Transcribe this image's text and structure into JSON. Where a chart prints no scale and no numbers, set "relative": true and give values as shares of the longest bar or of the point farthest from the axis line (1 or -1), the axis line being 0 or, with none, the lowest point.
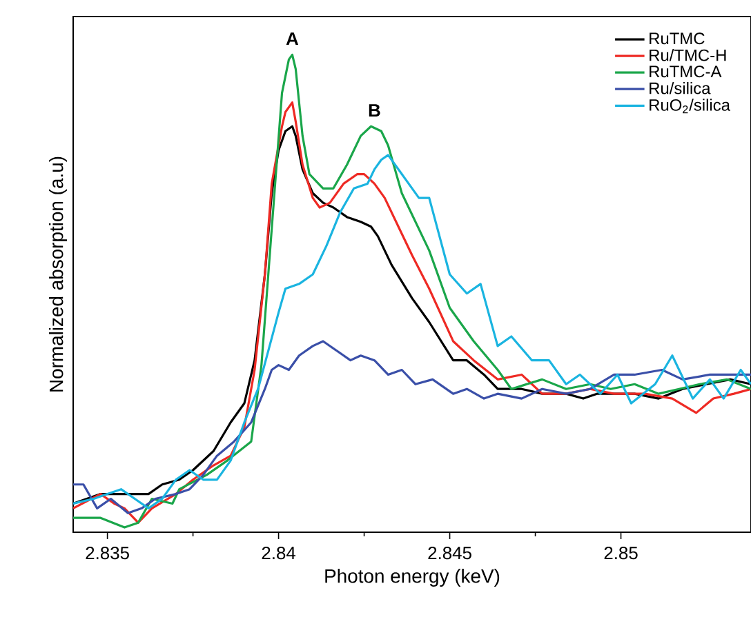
{
  "chart_data": {
    "type": "line",
    "relative": true,
    "xlabel": "Photon energy (keV)",
    "ylabel": "Normalized absorption (a.u)",
    "xlim": [
      2.834,
      2.8538
    ],
    "xticks": [
      2.835,
      2.84,
      2.845,
      2.85
    ],
    "legend": "top right",
    "grid": false,
    "marker": "none",
    "line_style": "solid",
    "annotations": [
      {
        "text": "A",
        "x": 2.8404,
        "y": 1.0
      },
      {
        "text": "B",
        "x": 2.8428,
        "y": 0.85
      }
    ],
    "series": [
      {
        "name": "RuTMC",
        "color": "#000000",
        "x": [
          2.834,
          2.8348,
          2.8356,
          2.8362,
          2.8366,
          2.8371,
          2.8375,
          2.8381,
          2.8386,
          2.839,
          2.8393,
          2.8396,
          2.8398,
          2.84,
          2.8402,
          2.8404,
          2.8405,
          2.8407,
          2.841,
          2.8413,
          2.8416,
          2.842,
          2.8424,
          2.8427,
          2.8429,
          2.8433,
          2.8439,
          2.8444,
          2.8451,
          2.8455,
          2.846,
          2.8464,
          2.8471,
          2.8477,
          2.8484,
          2.8489,
          2.8493,
          2.8504,
          2.8511,
          2.8518,
          2.8525,
          2.8532,
          2.8538
        ],
        "values": [
          0.06,
          0.08,
          0.08,
          0.08,
          0.1,
          0.11,
          0.13,
          0.17,
          0.23,
          0.27,
          0.36,
          0.54,
          0.71,
          0.8,
          0.84,
          0.85,
          0.83,
          0.76,
          0.71,
          0.69,
          0.68,
          0.66,
          0.65,
          0.64,
          0.62,
          0.56,
          0.49,
          0.44,
          0.36,
          0.36,
          0.33,
          0.3,
          0.3,
          0.29,
          0.29,
          0.28,
          0.29,
          0.29,
          0.28,
          0.3,
          0.31,
          0.32,
          0.31
        ]
      },
      {
        "name": "Ru/TMC-H",
        "color": "#ee2a24",
        "x": [
          2.834,
          2.8348,
          2.8352,
          2.8355,
          2.8359,
          2.8363,
          2.837,
          2.8375,
          2.8381,
          2.8386,
          2.839,
          2.8393,
          2.8396,
          2.8398,
          2.8401,
          2.8402,
          2.8404,
          2.8405,
          2.8407,
          2.841,
          2.8412,
          2.8415,
          2.8419,
          2.8423,
          2.8425,
          2.8428,
          2.8431,
          2.8435,
          2.8439,
          2.8444,
          2.8451,
          2.8457,
          2.8464,
          2.8471,
          2.8477,
          2.8484,
          2.8491,
          2.8498,
          2.8507,
          2.8515,
          2.8522,
          2.8527,
          2.8533,
          2.8538
        ],
        "values": [
          0.05,
          0.08,
          0.06,
          0.05,
          0.02,
          0.05,
          0.08,
          0.11,
          0.14,
          0.16,
          0.22,
          0.34,
          0.54,
          0.73,
          0.85,
          0.88,
          0.9,
          0.86,
          0.77,
          0.7,
          0.68,
          0.69,
          0.73,
          0.75,
          0.75,
          0.73,
          0.7,
          0.64,
          0.58,
          0.51,
          0.4,
          0.36,
          0.32,
          0.33,
          0.29,
          0.29,
          0.3,
          0.29,
          0.29,
          0.28,
          0.25,
          0.28,
          0.29,
          0.3
        ]
      },
      {
        "name": "RuTMC-A",
        "color": "#1aa64a",
        "x": [
          2.834,
          2.8348,
          2.8355,
          2.8359,
          2.8363,
          2.8369,
          2.8371,
          2.8379,
          2.8385,
          2.8392,
          2.8395,
          2.8397,
          2.8399,
          2.8401,
          2.8403,
          2.8404,
          2.8405,
          2.8407,
          2.8409,
          2.8413,
          2.8416,
          2.842,
          2.8424,
          2.8427,
          2.843,
          2.8432,
          2.8436,
          2.8444,
          2.845,
          2.8457,
          2.8464,
          2.8468,
          2.8477,
          2.8484,
          2.8491,
          2.8497,
          2.8504,
          2.8511,
          2.8517,
          2.8523,
          2.8531,
          2.8538
        ],
        "values": [
          0.03,
          0.03,
          0.01,
          0.02,
          0.07,
          0.06,
          0.09,
          0.12,
          0.15,
          0.19,
          0.35,
          0.54,
          0.73,
          0.92,
          0.99,
          1.0,
          0.97,
          0.83,
          0.75,
          0.72,
          0.72,
          0.77,
          0.83,
          0.85,
          0.84,
          0.81,
          0.71,
          0.59,
          0.47,
          0.4,
          0.34,
          0.3,
          0.32,
          0.3,
          0.31,
          0.3,
          0.31,
          0.29,
          0.3,
          0.31,
          0.32,
          0.3
        ]
      },
      {
        "name": "Ru/silica",
        "color": "#3a4fa8",
        "x": [
          2.834,
          2.8343,
          2.8347,
          2.8351,
          2.8356,
          2.836,
          2.8364,
          2.837,
          2.8374,
          2.8378,
          2.8382,
          2.8387,
          2.8392,
          2.8396,
          2.8398,
          2.84,
          2.8403,
          2.8406,
          2.841,
          2.8413,
          2.8417,
          2.8421,
          2.8424,
          2.8428,
          2.8432,
          2.8436,
          2.844,
          2.8445,
          2.8451,
          2.8455,
          2.846,
          2.8464,
          2.8471,
          2.8477,
          2.8484,
          2.8491,
          2.8498,
          2.8504,
          2.8512,
          2.8518,
          2.8526,
          2.8538
        ],
        "values": [
          0.1,
          0.1,
          0.05,
          0.07,
          0.04,
          0.05,
          0.07,
          0.08,
          0.09,
          0.12,
          0.16,
          0.19,
          0.23,
          0.3,
          0.34,
          0.35,
          0.34,
          0.37,
          0.39,
          0.4,
          0.38,
          0.36,
          0.37,
          0.36,
          0.33,
          0.34,
          0.31,
          0.32,
          0.29,
          0.3,
          0.28,
          0.29,
          0.28,
          0.3,
          0.29,
          0.3,
          0.33,
          0.33,
          0.34,
          0.32,
          0.33,
          0.33
        ]
      },
      {
        "name": "RuO$_{2}$/silica",
        "color": "#1ab4e0",
        "x": [
          2.834,
          2.8346,
          2.835,
          2.8354,
          2.8358,
          2.8362,
          2.8366,
          2.837,
          2.8374,
          2.8378,
          2.8382,
          2.8386,
          2.839,
          2.8394,
          2.8397,
          2.84,
          2.8402,
          2.8406,
          2.841,
          2.8414,
          2.8418,
          2.8422,
          2.8426,
          2.8428,
          2.843,
          2.8432,
          2.8436,
          2.8441,
          2.8444,
          2.845,
          2.8455,
          2.8459,
          2.8464,
          2.8468,
          2.8474,
          2.8479,
          2.8484,
          2.8488,
          2.8494,
          2.8499,
          2.8503,
          2.851,
          2.8515,
          2.8521,
          2.8526,
          2.853,
          2.8535,
          2.8538
        ],
        "values": [
          0.06,
          0.07,
          0.08,
          0.09,
          0.07,
          0.05,
          0.07,
          0.11,
          0.13,
          0.11,
          0.11,
          0.15,
          0.23,
          0.3,
          0.38,
          0.46,
          0.51,
          0.52,
          0.54,
          0.6,
          0.67,
          0.72,
          0.73,
          0.76,
          0.78,
          0.79,
          0.75,
          0.7,
          0.7,
          0.54,
          0.5,
          0.52,
          0.39,
          0.41,
          0.36,
          0.36,
          0.31,
          0.33,
          0.29,
          0.33,
          0.27,
          0.31,
          0.37,
          0.28,
          0.32,
          0.28,
          0.34,
          0.31
        ]
      }
    ]
  }
}
